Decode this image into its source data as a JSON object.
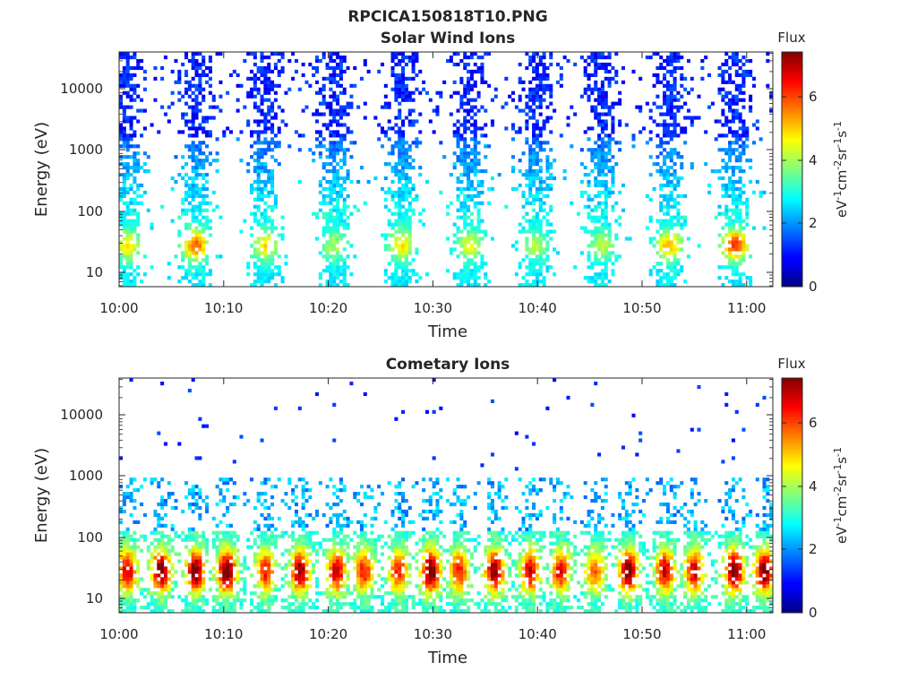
{
  "figure_title": "RPCICA150818T10.PNG",
  "colorbar": {
    "title": "Flux",
    "label_base": "eV",
    "label_parts": [
      {
        "text": "eV",
        "sup": false
      },
      {
        "text": "-1",
        "sup": true
      },
      {
        "text": "cm",
        "sup": false
      },
      {
        "text": "-2",
        "sup": true
      },
      {
        "text": "sr",
        "sup": false
      },
      {
        "text": "-1",
        "sup": true
      },
      {
        "text": "s",
        "sup": false
      },
      {
        "text": "-1",
        "sup": true
      }
    ],
    "range": [
      0,
      7.4
    ],
    "ticks": [
      0,
      2,
      4,
      6
    ],
    "tick_labels": [
      "0",
      "2",
      "4",
      "6"
    ],
    "colormap": "jet"
  },
  "chart_data": [
    {
      "type": "heatmap",
      "title": "Solar Wind Ions",
      "xlabel": "Time",
      "ylabel": "Energy (eV)",
      "x_range": [
        "10:00",
        "11:03"
      ],
      "x_ticks": [
        "10:00",
        "10:10",
        "10:20",
        "10:30",
        "10:40",
        "10:50",
        "11:00"
      ],
      "y_scale": "log",
      "y_range": [
        5.8,
        42000
      ],
      "y_ticks": [
        10,
        100,
        1000,
        10000
      ],
      "y_tick_labels": [
        "10",
        "100",
        "1000",
        "10000"
      ],
      "grid": false,
      "color_scale": "Flux",
      "bursts": [
        {
          "time_min": 0.8,
          "peak_flux": 4.6
        },
        {
          "time_min": 7.3,
          "peak_flux": 5.6
        },
        {
          "time_min": 14.0,
          "peak_flux": 4.6
        },
        {
          "time_min": 20.6,
          "peak_flux": 3.8
        },
        {
          "time_min": 27.0,
          "peak_flux": 4.6
        },
        {
          "time_min": 33.5,
          "peak_flux": 4.3
        },
        {
          "time_min": 39.8,
          "peak_flux": 3.8
        },
        {
          "time_min": 46.2,
          "peak_flux": 3.9
        },
        {
          "time_min": 52.6,
          "peak_flux": 5.0
        },
        {
          "time_min": 58.9,
          "peak_flux": 5.9
        }
      ]
    },
    {
      "type": "heatmap",
      "title": "Cometary Ions",
      "xlabel": "Time",
      "ylabel": "Energy (eV)",
      "x_range": [
        "10:00",
        "11:03"
      ],
      "x_ticks": [
        "10:00",
        "10:10",
        "10:20",
        "10:30",
        "10:40",
        "10:50",
        "11:00"
      ],
      "y_scale": "log",
      "y_range": [
        5.8,
        42000
      ],
      "y_ticks": [
        10,
        100,
        1000,
        10000
      ],
      "y_tick_labels": [
        "10",
        "100",
        "1000",
        "10000"
      ],
      "grid": false,
      "color_scale": "Flux",
      "bursts": [
        {
          "time_min": 0.8,
          "peak_flux": 6.5
        },
        {
          "time_min": 4.0,
          "peak_flux": 7.2
        },
        {
          "time_min": 7.3,
          "peak_flux": 7.3
        },
        {
          "time_min": 10.3,
          "peak_flux": 7.4
        },
        {
          "time_min": 14.0,
          "peak_flux": 6.0
        },
        {
          "time_min": 17.3,
          "peak_flux": 7.0
        },
        {
          "time_min": 20.8,
          "peak_flux": 6.5
        },
        {
          "time_min": 23.4,
          "peak_flux": 6.0
        },
        {
          "time_min": 26.7,
          "peak_flux": 6.0
        },
        {
          "time_min": 29.8,
          "peak_flux": 7.4
        },
        {
          "time_min": 32.5,
          "peak_flux": 6.0
        },
        {
          "time_min": 35.9,
          "peak_flux": 7.0
        },
        {
          "time_min": 39.3,
          "peak_flux": 6.5
        },
        {
          "time_min": 42.2,
          "peak_flux": 6.2
        },
        {
          "time_min": 45.5,
          "peak_flux": 5.5
        },
        {
          "time_min": 48.7,
          "peak_flux": 7.3
        },
        {
          "time_min": 52.2,
          "peak_flux": 6.5
        },
        {
          "time_min": 55.0,
          "peak_flux": 6.5
        },
        {
          "time_min": 58.8,
          "peak_flux": 7.3
        },
        {
          "time_min": 61.7,
          "peak_flux": 7.3
        }
      ]
    }
  ]
}
